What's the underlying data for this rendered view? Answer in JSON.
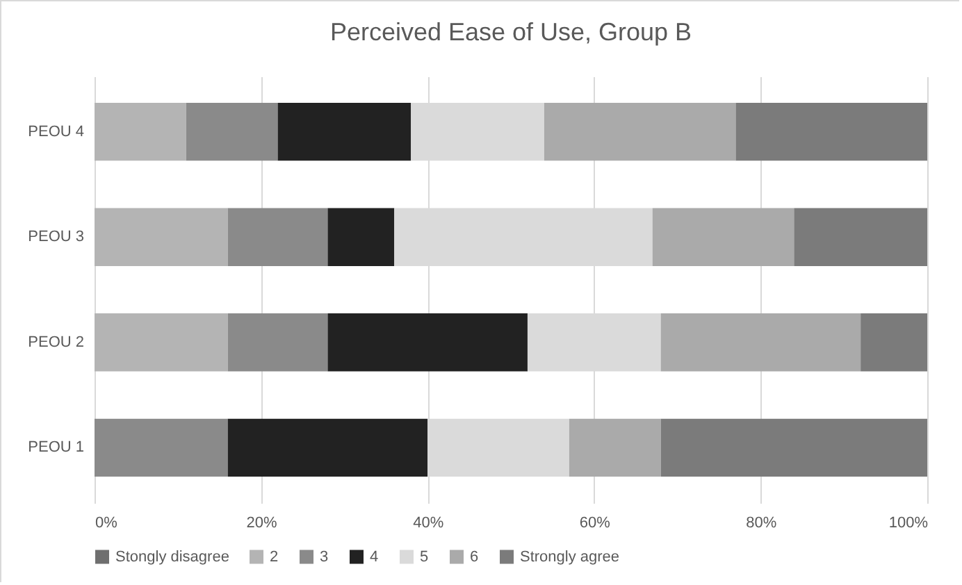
{
  "chart_data": {
    "type": "bar",
    "orientation": "horizontal",
    "stacked": true,
    "title": "Perceived Ease of Use, Group B",
    "categories": [
      "PEOU 4",
      "PEOU 3",
      "PEOU 2",
      "PEOU 1"
    ],
    "series": [
      {
        "name": "Stongly disagree",
        "color": "#6f6f6f",
        "values": [
          0,
          0,
          0,
          0
        ]
      },
      {
        "name": "2",
        "color": "#b4b4b4",
        "values": [
          11,
          16,
          16,
          0
        ]
      },
      {
        "name": "3",
        "color": "#8a8a8a",
        "values": [
          11,
          12,
          12,
          16
        ]
      },
      {
        "name": "4",
        "color": "#222222",
        "values": [
          16,
          8,
          24,
          24
        ]
      },
      {
        "name": "5",
        "color": "#dadada",
        "values": [
          16,
          31,
          16,
          17
        ]
      },
      {
        "name": "6",
        "color": "#aaaaaa",
        "values": [
          23,
          17,
          24,
          11
        ]
      },
      {
        "name": "Strongly agree",
        "color": "#7b7b7b",
        "values": [
          23,
          16,
          8,
          32
        ]
      }
    ],
    "xlim": [
      0,
      100
    ],
    "xticks": [
      {
        "value": 0,
        "label": "0%"
      },
      {
        "value": 20,
        "label": "20%"
      },
      {
        "value": 40,
        "label": "40%"
      },
      {
        "value": 60,
        "label": "60%"
      },
      {
        "value": 80,
        "label": "80%"
      },
      {
        "value": 100,
        "label": "100%"
      }
    ],
    "grid": "x",
    "legend": "bottom"
  }
}
